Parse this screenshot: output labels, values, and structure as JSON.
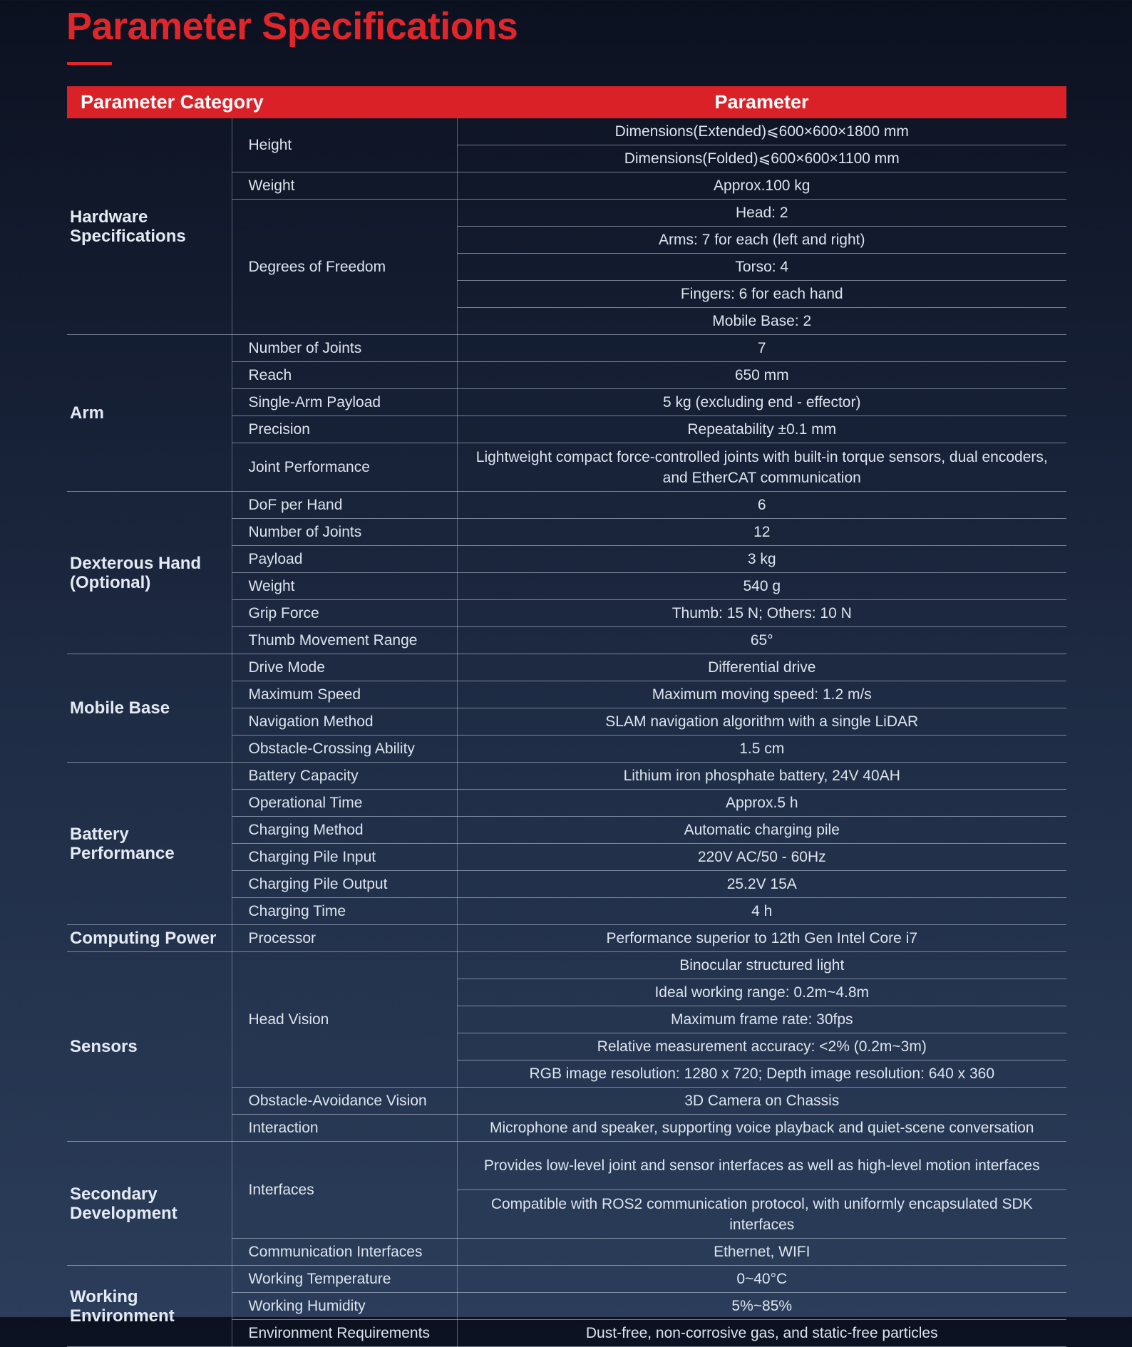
{
  "page_title": "Parameter Specifications",
  "header": {
    "category": "Parameter Category",
    "parameter": "Parameter"
  },
  "colors": {
    "accent": "#e0262b",
    "header_bg": "#da2127",
    "background_top": "#0c1120",
    "background_bottom": "#2b3d5a"
  },
  "categories": [
    {
      "name": "Hardware Specifications",
      "params": [
        {
          "name": "Height",
          "values": [
            "Dimensions(Extended)⩽600×600×1800 mm",
            "Dimensions(Folded)⩽600×600×1100 mm"
          ]
        },
        {
          "name": "Weight",
          "values": [
            "Approx.100 kg"
          ]
        },
        {
          "name": "Degrees of Freedom",
          "values": [
            "Head: 2",
            "Arms: 7 for each (left and right)",
            "Torso: 4",
            "Fingers: 6 for each hand",
            "Mobile Base: 2"
          ]
        }
      ]
    },
    {
      "name": "Arm",
      "params": [
        {
          "name": "Number of Joints",
          "values": [
            "7"
          ]
        },
        {
          "name": "Reach",
          "values": [
            "650 mm"
          ]
        },
        {
          "name": "Single-Arm Payload",
          "values": [
            "5 kg (excluding end - effector)"
          ]
        },
        {
          "name": "Precision",
          "values": [
            "Repeatability ±0.1 mm"
          ]
        },
        {
          "name": "Joint Performance",
          "values": [
            "Lightweight compact force-controlled joints with built-in torque sensors, dual encoders, and EtherCAT communication"
          ]
        }
      ]
    },
    {
      "name": "Dexterous Hand (Optional)",
      "params": [
        {
          "name": "DoF per Hand",
          "values": [
            "6"
          ]
        },
        {
          "name": "Number of Joints",
          "values": [
            "12"
          ]
        },
        {
          "name": "Payload",
          "values": [
            "3 kg"
          ]
        },
        {
          "name": "Weight",
          "values": [
            "540 g"
          ]
        },
        {
          "name": "Grip Force",
          "values": [
            "Thumb: 15 N; Others: 10 N"
          ]
        },
        {
          "name": "Thumb Movement Range",
          "values": [
            "65°"
          ]
        }
      ]
    },
    {
      "name": "Mobile Base",
      "params": [
        {
          "name": "Drive Mode",
          "values": [
            "Differential drive"
          ]
        },
        {
          "name": "Maximum Speed",
          "values": [
            "Maximum moving speed: 1.2 m/s"
          ]
        },
        {
          "name": "Navigation Method",
          "values": [
            "SLAM navigation algorithm with a single LiDAR"
          ]
        },
        {
          "name": "Obstacle-Crossing Ability",
          "values": [
            "1.5 cm"
          ]
        }
      ]
    },
    {
      "name": "Battery Performance",
      "params": [
        {
          "name": "Battery Capacity",
          "values": [
            "Lithium iron phosphate battery, 24V 40AH"
          ]
        },
        {
          "name": "Operational Time",
          "values": [
            "Approx.5 h"
          ]
        },
        {
          "name": "Charging Method",
          "values": [
            "Automatic charging pile"
          ]
        },
        {
          "name": "Charging Pile Input",
          "values": [
            "220V AC/50 - 60Hz"
          ]
        },
        {
          "name": "Charging Pile Output",
          "values": [
            "25.2V 15A"
          ]
        },
        {
          "name": "Charging Time",
          "values": [
            "4 h"
          ]
        }
      ]
    },
    {
      "name": "Computing Power",
      "params": [
        {
          "name": "Processor",
          "values": [
            "Performance superior to 12th Gen Intel Core i7"
          ]
        }
      ]
    },
    {
      "name": "Sensors",
      "params": [
        {
          "name": "Head Vision",
          "values": [
            "Binocular structured light",
            "Ideal working range: 0.2m~4.8m",
            "Maximum frame rate: 30fps",
            "Relative measurement accuracy: <2% (0.2m~3m)",
            "RGB image resolution: 1280 x 720; Depth image resolution: 640 x 360"
          ]
        },
        {
          "name": "Obstacle-Avoidance Vision",
          "values": [
            "3D Camera on Chassis"
          ]
        },
        {
          "name": "Interaction",
          "values": [
            "Microphone and speaker, supporting voice playback and quiet-scene conversation"
          ]
        }
      ]
    },
    {
      "name": "Secondary Development",
      "params": [
        {
          "name": "Interfaces",
          "values": [
            "Provides low-level joint and sensor interfaces as well as high-level motion interfaces",
            "Compatible with ROS2 communication protocol, with uniformly encapsulated SDK interfaces"
          ]
        },
        {
          "name": "Communication Interfaces",
          "values": [
            "Ethernet, WIFI"
          ]
        }
      ]
    },
    {
      "name": "Working Environment",
      "params": [
        {
          "name": "Working Temperature",
          "values": [
            "0~40°C"
          ]
        },
        {
          "name": "Working Humidity",
          "values": [
            "5%~85%"
          ]
        },
        {
          "name": "Environment Requirements",
          "values": [
            "Dust-free, non-corrosive gas, and static-free particles"
          ]
        }
      ]
    }
  ]
}
